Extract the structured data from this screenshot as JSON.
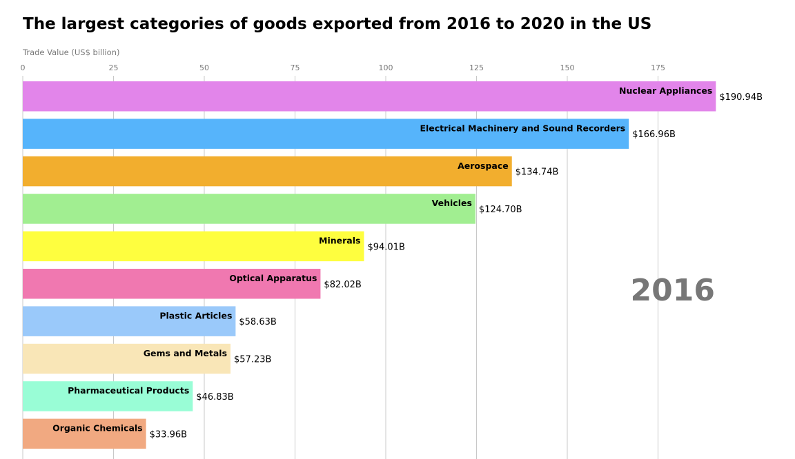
{
  "chart_data": {
    "type": "bar",
    "orientation": "horizontal",
    "title": "The largest categories of goods exported from 2016 to 2020 in the US",
    "xlabel": "Trade Value (US$ billion)",
    "xlim": [
      0,
      200
    ],
    "x_ticks": [
      "0",
      "25",
      "50",
      "75",
      "100",
      "125",
      "150",
      "175"
    ],
    "grid": true,
    "year": "2016",
    "categories": [
      "Nuclear Appliances",
      "Electrical Machinery and Sound Recorders",
      "Aerospace",
      "Vehicles",
      "Minerals",
      "Optical Apparatus",
      "Plastic Articles",
      "Gems and Metals",
      "Pharmaceutical Products",
      "Organic Chemicals"
    ],
    "values": [
      190.94,
      166.96,
      134.74,
      124.7,
      94.01,
      82.02,
      58.63,
      57.23,
      46.83,
      33.96
    ],
    "value_labels": [
      "$190.94B",
      "$166.96B",
      "$134.74B",
      "$124.70B",
      "$94.01B",
      "$82.02B",
      "$58.63B",
      "$57.23B",
      "$46.83B",
      "$33.96B"
    ],
    "colors": [
      "#e285ea",
      "#56b4fb",
      "#f2ae2e",
      "#a1ee91",
      "#fefe3f",
      "#f078b0",
      "#9ac9fa",
      "#f9e6b7",
      "#99fdd6",
      "#f1a981"
    ]
  }
}
